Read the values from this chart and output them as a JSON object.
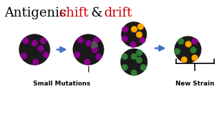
{
  "title_parts": [
    {
      "text": "Antigenic ",
      "color": "#000000"
    },
    {
      "text": "shift",
      "color": "#cc0000"
    },
    {
      "text": " & ",
      "color": "#000000"
    },
    {
      "text": "drift",
      "color": "#cc0000"
    }
  ],
  "title_fontsize": 13.5,
  "background_color": "#ffffff",
  "virus_body_color": "#1a1a1a",
  "purple_dot": "#8B008B",
  "green_dot": "#2e7d32",
  "orange_dot": "#FFA500",
  "arrow_color": "#4472C4",
  "label_small": "Small Mutations",
  "label_new": "New Strain",
  "label_fontsize": 6.5
}
